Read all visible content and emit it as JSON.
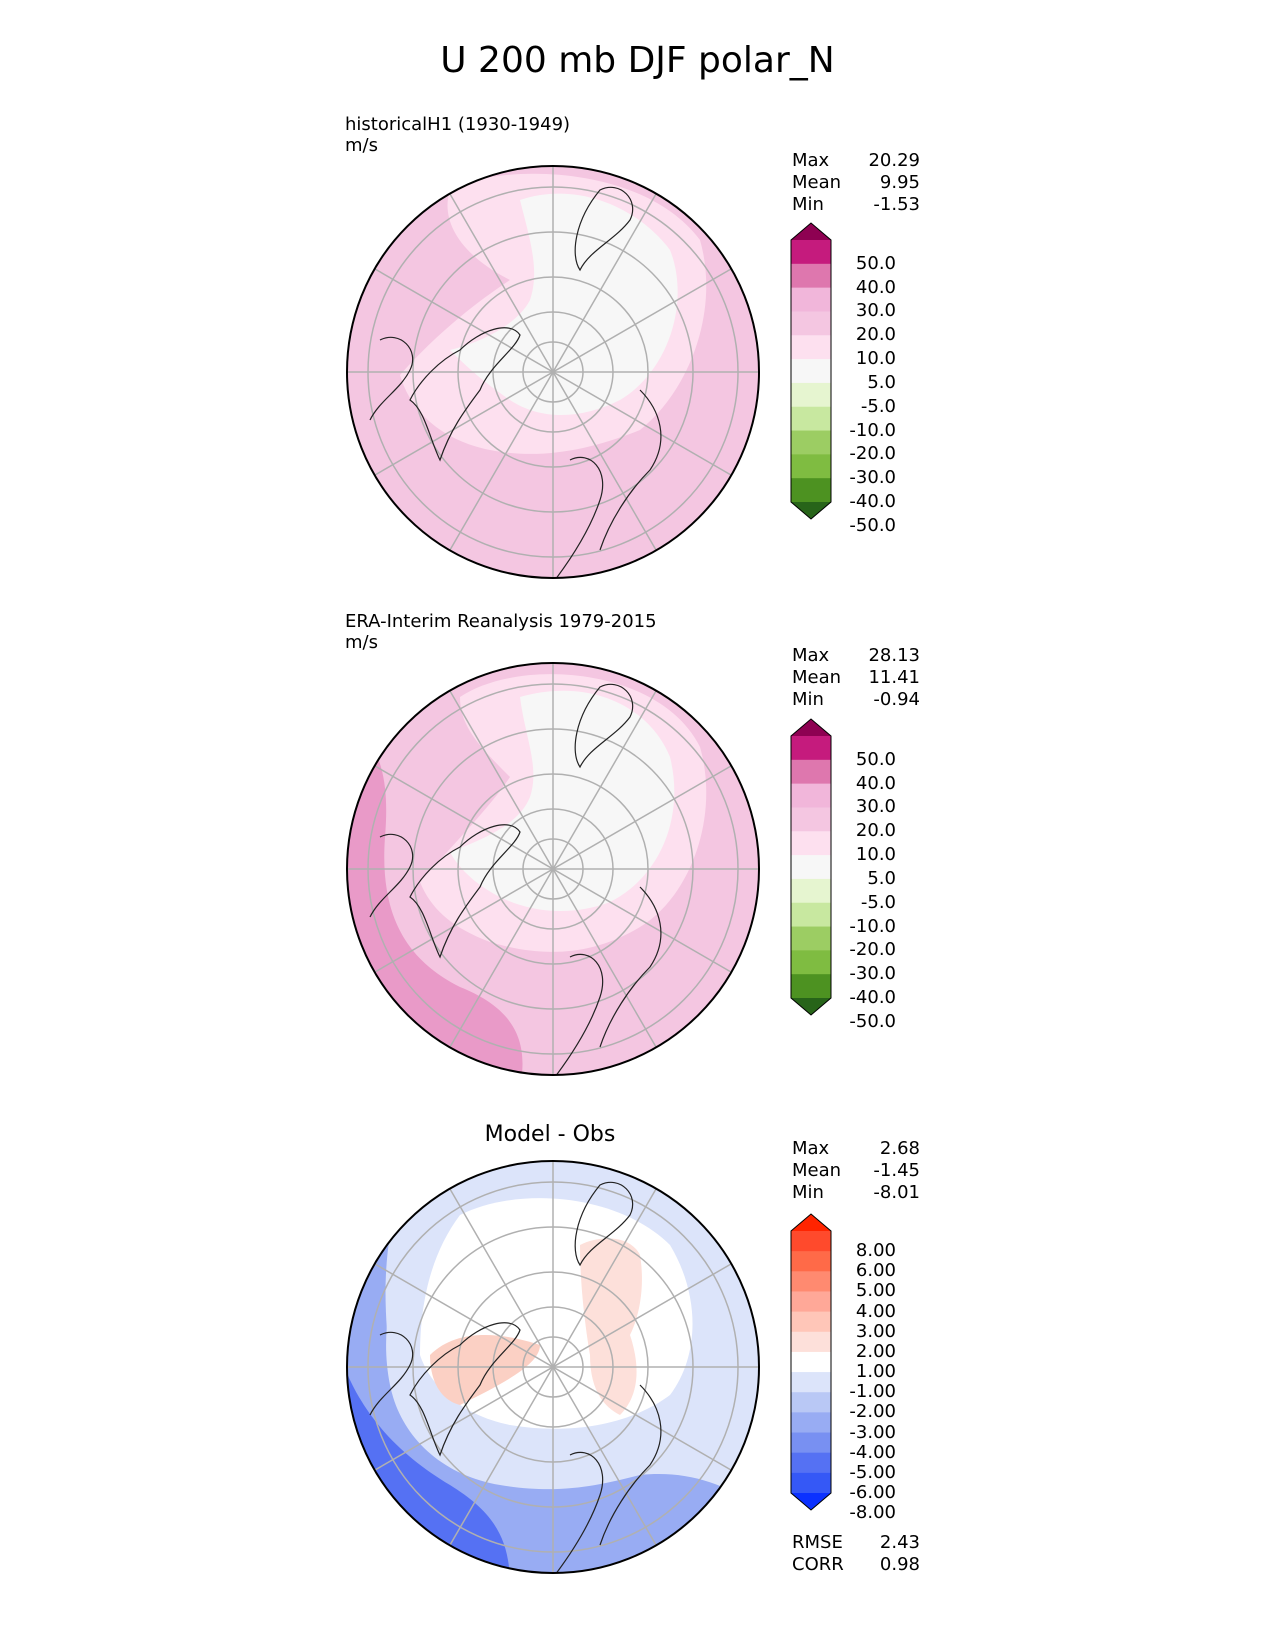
{
  "title": "U 200 mb DJF polar_N",
  "panels": [
    {
      "label": "historicalH1 (1930-1949)",
      "units": "m/s",
      "stats": [
        {
          "name": "Max",
          "value": "20.29"
        },
        {
          "name": "Mean",
          "value": "9.95"
        },
        {
          "name": "Min",
          "value": "-1.53"
        }
      ],
      "colorbar": {
        "levels": [
          "50.0",
          "40.0",
          "30.0",
          "20.0",
          "10.0",
          "5.0",
          "-5.0",
          "-10.0",
          "-20.0",
          "-30.0",
          "-40.0",
          "-50.0"
        ],
        "colors": [
          "#8e0152",
          "#c51b7d",
          "#de77ae",
          "#f1b6da",
          "#f4c6e1",
          "#fde0ef",
          "#f7f7f7",
          "#e6f5d0",
          "#c8e8a0",
          "#9ccd63",
          "#7fbc41",
          "#4d9221",
          "#276419"
        ]
      }
    },
    {
      "label": "ERA-Interim Reanalysis 1979-2015",
      "units": "m/s",
      "stats": [
        {
          "name": "Max",
          "value": "28.13"
        },
        {
          "name": "Mean",
          "value": "11.41"
        },
        {
          "name": "Min",
          "value": "-0.94"
        }
      ],
      "colorbar": {
        "levels": [
          "50.0",
          "40.0",
          "30.0",
          "20.0",
          "10.0",
          "5.0",
          "-5.0",
          "-10.0",
          "-20.0",
          "-30.0",
          "-40.0",
          "-50.0"
        ],
        "colors": [
          "#8e0152",
          "#c51b7d",
          "#de77ae",
          "#f1b6da",
          "#f4c6e1",
          "#fde0ef",
          "#f7f7f7",
          "#e6f5d0",
          "#c8e8a0",
          "#9ccd63",
          "#7fbc41",
          "#4d9221",
          "#276419"
        ]
      }
    },
    {
      "label": "Model - Obs",
      "units": "",
      "stats": [
        {
          "name": "Max",
          "value": "2.68"
        },
        {
          "name": "Mean",
          "value": "-1.45"
        },
        {
          "name": "Min",
          "value": "-8.01"
        }
      ],
      "extra_stats": [
        {
          "name": "RMSE",
          "value": "2.43"
        },
        {
          "name": "CORR",
          "value": "0.98"
        }
      ],
      "colorbar": {
        "levels": [
          "8.00",
          "6.00",
          "5.00",
          "4.00",
          "3.00",
          "2.00",
          "1.00",
          "-1.00",
          "-2.00",
          "-3.00",
          "-4.00",
          "-5.00",
          "-6.00",
          "-8.00"
        ],
        "colors": [
          "#ff2400",
          "#ff4a2c",
          "#ff6a48",
          "#ff8a70",
          "#ffa898",
          "#ffc6b8",
          "#fde0da",
          "#ffffff",
          "#dce4fa",
          "#b9c8f5",
          "#98acf3",
          "#7890f2",
          "#5571f3",
          "#3558f6",
          "#0b31ff"
        ]
      }
    }
  ],
  "chart_data": [
    {
      "type": "heatmap",
      "projection": "north polar stereographic",
      "title": "historicalH1 (1930-1949)",
      "units": "m/s",
      "stats": {
        "max": 20.29,
        "mean": 9.95,
        "min": -1.53
      },
      "levels": [
        -50,
        -40,
        -30,
        -20,
        -10,
        -5,
        5,
        10,
        20,
        30,
        40,
        50
      ]
    },
    {
      "type": "heatmap",
      "projection": "north polar stereographic",
      "title": "ERA-Interim Reanalysis 1979-2015",
      "units": "m/s",
      "stats": {
        "max": 28.13,
        "mean": 11.41,
        "min": -0.94
      },
      "levels": [
        -50,
        -40,
        -30,
        -20,
        -10,
        -5,
        5,
        10,
        20,
        30,
        40,
        50
      ]
    },
    {
      "type": "heatmap",
      "projection": "north polar stereographic",
      "title": "Model - Obs",
      "stats": {
        "max": 2.68,
        "mean": -1.45,
        "min": -8.01,
        "rmse": 2.43,
        "corr": 0.98
      },
      "levels": [
        -8,
        -6,
        -5,
        -4,
        -3,
        -2,
        -1,
        1,
        2,
        3,
        4,
        5,
        6,
        8
      ]
    }
  ]
}
